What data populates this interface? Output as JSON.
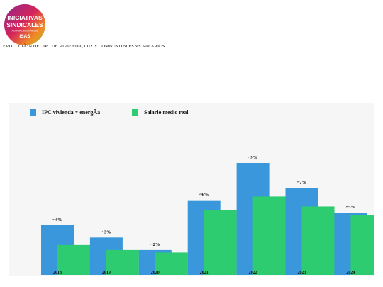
{
  "logo": {
    "lines": [
      "INICIATIVAS",
      "SINDICALES",
      "AGROALIMENTARIAS",
      "ISAS"
    ],
    "colors": [
      "#8e2a8c",
      "#d4235b",
      "#f08a24",
      "#a8c63b"
    ]
  },
  "chart_title": "EVOLUCIÃ“N DEL IPC DE VIVIENDA, LUZ Y COMBUSTIBLES VS SALARIOS",
  "chart_data": {
    "type": "bar",
    "categories": [
      "2018",
      "2019",
      "2020",
      "2021",
      "2022",
      "2023",
      "2024"
    ],
    "series": [
      {
        "name": "IPC vivienda + energÃ­a",
        "values": [
          4,
          3,
          2,
          6,
          9,
          7,
          5
        ],
        "labels": [
          "~4%",
          "~3%",
          "~2%",
          "~6%",
          "~9%",
          "~7%",
          "~5%"
        ],
        "color": "#3a97db"
      },
      {
        "name": "Salario medio real",
        "values": [
          2.4,
          2.0,
          1.8,
          5.2,
          6.3,
          5.5,
          4.8
        ],
        "color": "#2ecc71"
      }
    ],
    "legend_position": "top-left",
    "grid": false
  }
}
